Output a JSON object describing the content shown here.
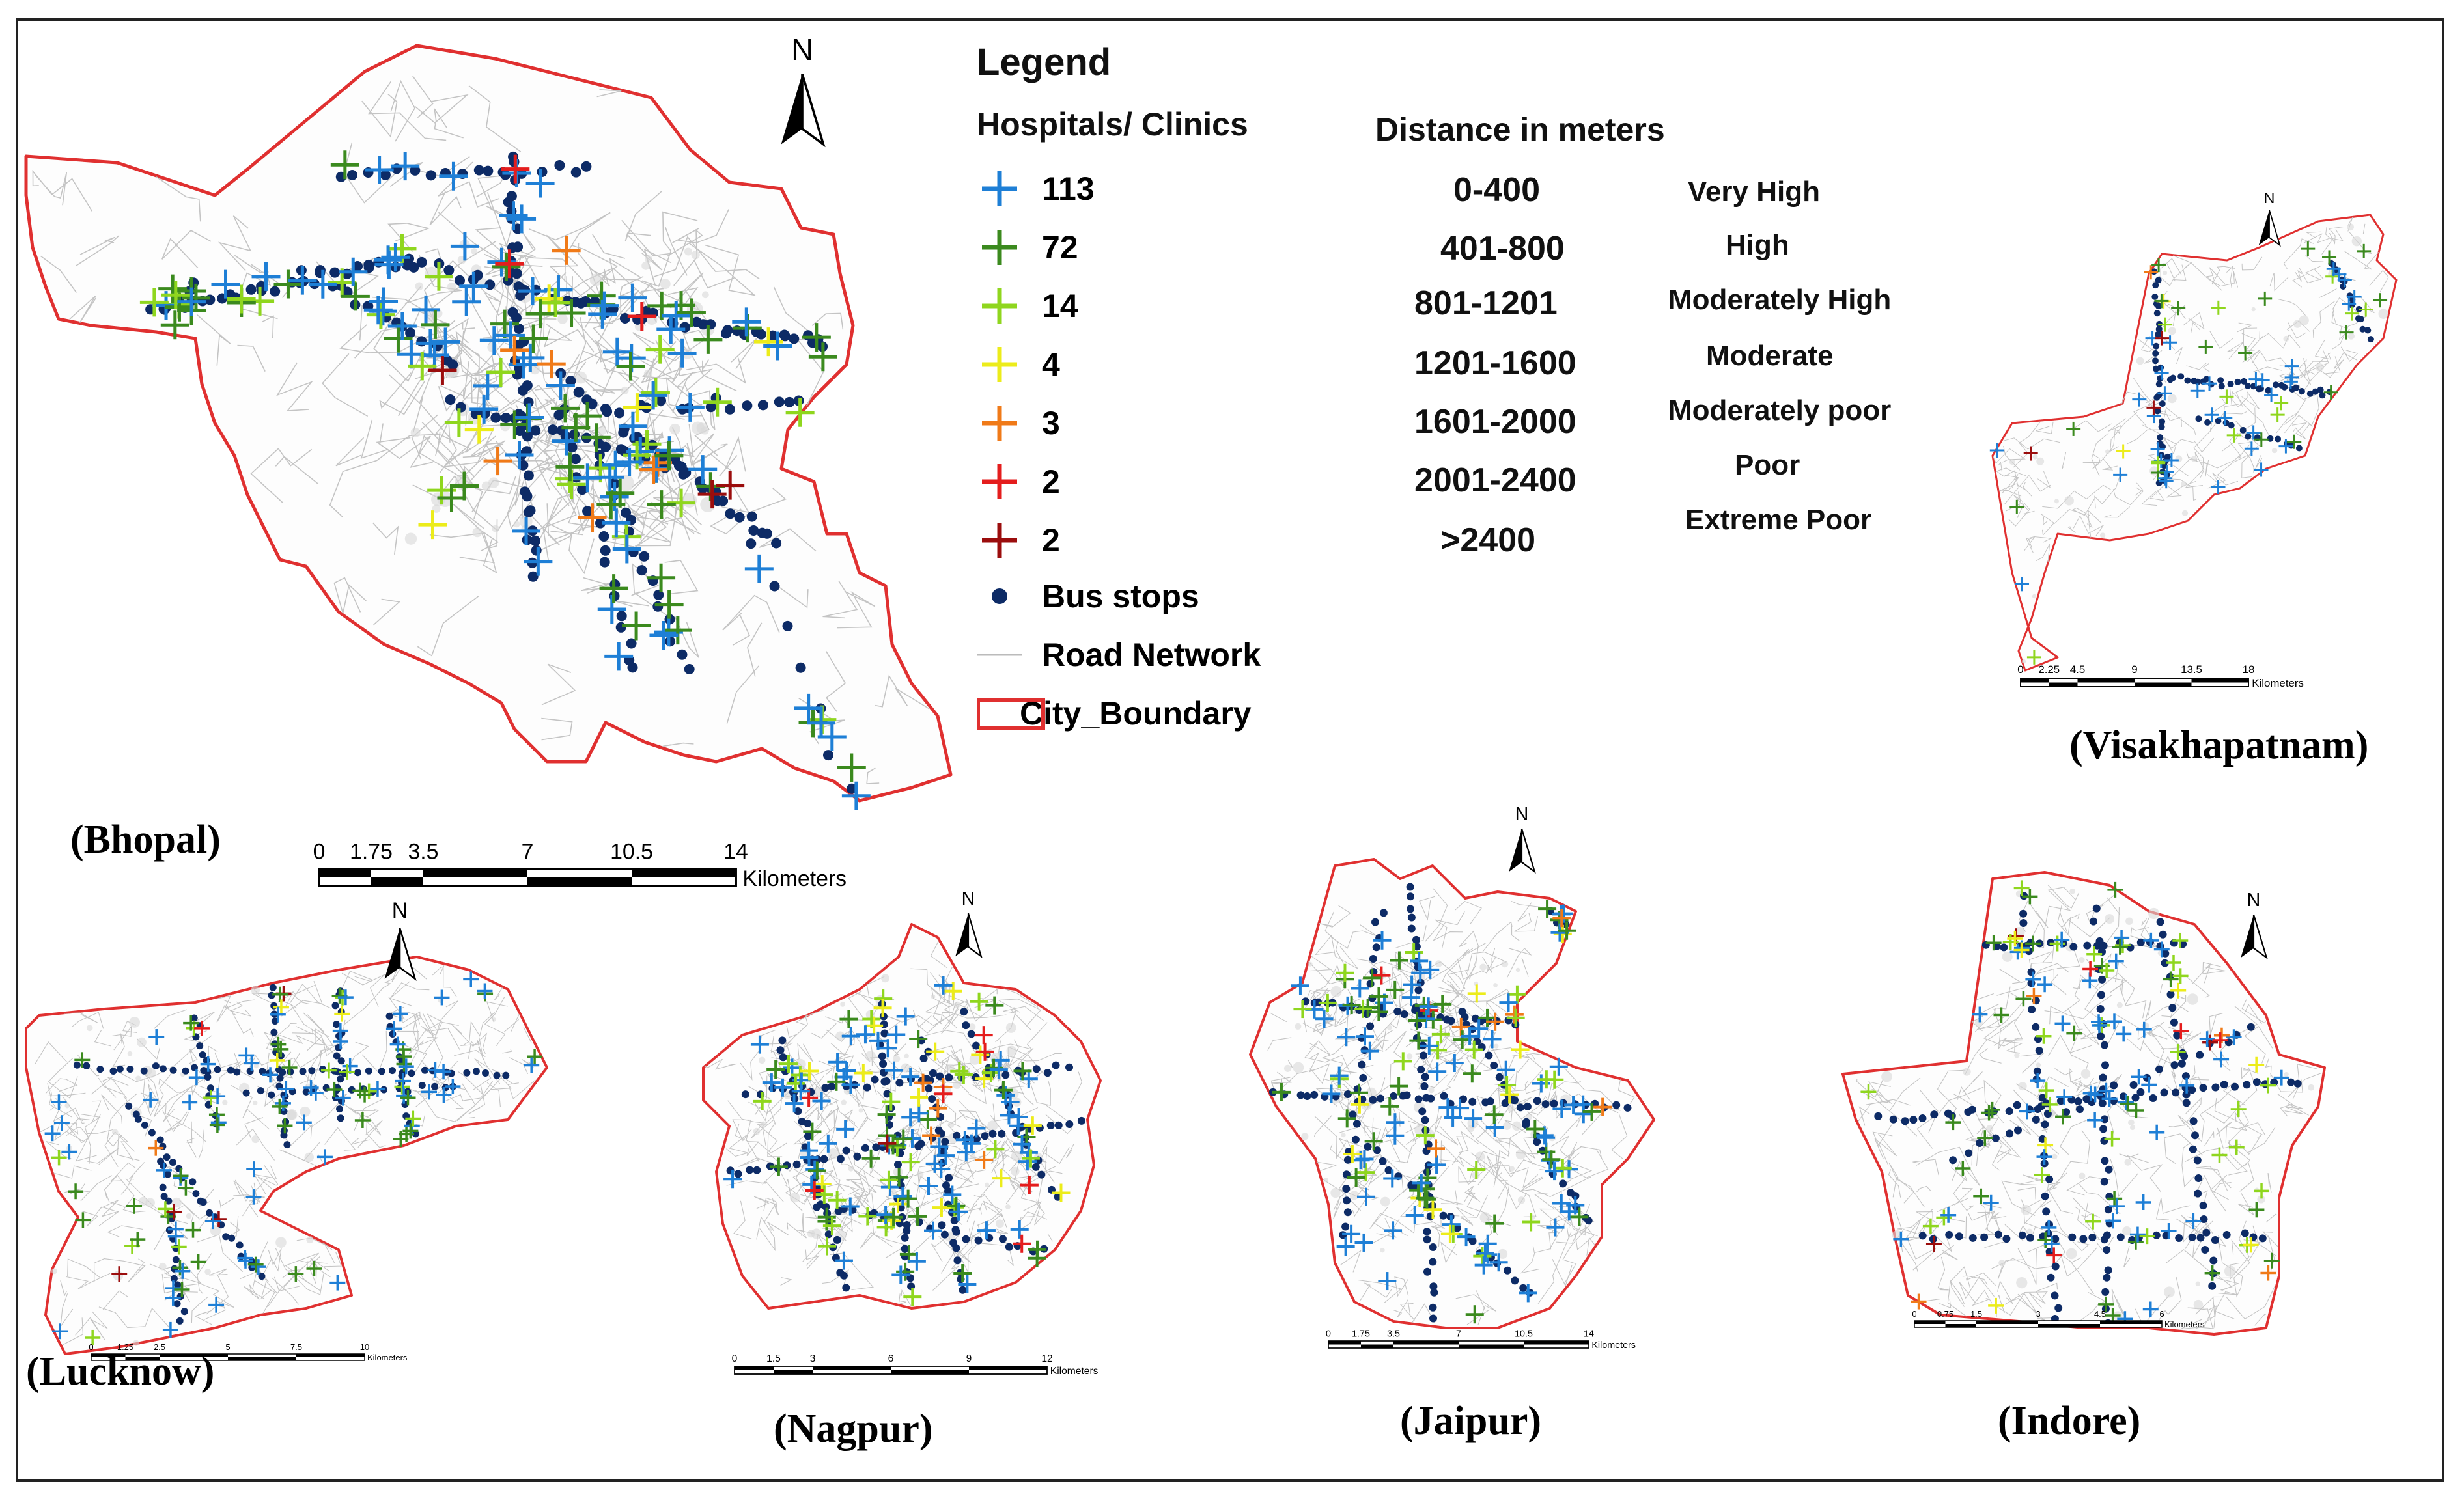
{
  "legend": {
    "title": "Legend",
    "hospitals_heading": "Hospitals/ Clinics",
    "hospital_classes": [
      {
        "count": "113",
        "color": "#1e7fd6"
      },
      {
        "count": "72",
        "color": "#3b8a1e"
      },
      {
        "count": "14",
        "color": "#8fd61e"
      },
      {
        "count": "4",
        "color": "#ecec1a"
      },
      {
        "count": "3",
        "color": "#f07a18"
      },
      {
        "count": "2",
        "color": "#e41d1d"
      },
      {
        "count": "2",
        "color": "#9b0d0d"
      }
    ],
    "bus_stops": "Bus stops",
    "bus_stop_color": "#0d2b66",
    "road_network": "Road Network",
    "city_boundary": "City_Boundary",
    "boundary_color": "#e03030",
    "distance_heading": "Distance in meters",
    "distance_classes": [
      {
        "range": "0-400",
        "label": "Very High"
      },
      {
        "range": "401-800",
        "label": "High"
      },
      {
        "range": "801-1201",
        "label": "Moderately High"
      },
      {
        "range": "1201-1600",
        "label": "Moderate"
      },
      {
        "range": "1601-2000",
        "label": "Moderately poor"
      },
      {
        "range": "2001-2400",
        "label": "Poor"
      },
      {
        "range": ">2400",
        "label": "Extreme Poor"
      }
    ]
  },
  "north_label": "N",
  "cities": [
    {
      "id": "bhopal",
      "name": "(Bhopal)",
      "scale_ticks": [
        "0",
        "1.75",
        "3.5",
        "7",
        "10.5",
        "14"
      ],
      "scale_unit": "Kilometers"
    },
    {
      "id": "visakhapatnam",
      "name": "(Visakhapatnam)",
      "scale_ticks": [
        "0",
        "2.25",
        "4.5",
        "9",
        "13.5",
        "18"
      ],
      "scale_unit": "Kilometers"
    },
    {
      "id": "lucknow",
      "name": "(Lucknow)",
      "scale_ticks": [
        "0",
        "1.25",
        "2.5",
        "5",
        "7.5",
        "10"
      ],
      "scale_unit": "Kilometers"
    },
    {
      "id": "nagpur",
      "name": "(Nagpur)",
      "scale_ticks": [
        "0",
        "1.5",
        "3",
        "6",
        "9",
        "12"
      ],
      "scale_unit": "Kilometers"
    },
    {
      "id": "jaipur",
      "name": "(Jaipur)",
      "scale_ticks": [
        "0",
        "1.75",
        "3.5",
        "7",
        "10.5",
        "14"
      ],
      "scale_unit": "Kilometers"
    },
    {
      "id": "indore",
      "name": "(Indore)",
      "scale_ticks": [
        "0",
        "0.75",
        "1.5",
        "3",
        "4.5",
        "6"
      ],
      "scale_unit": "Kilometers"
    }
  ]
}
